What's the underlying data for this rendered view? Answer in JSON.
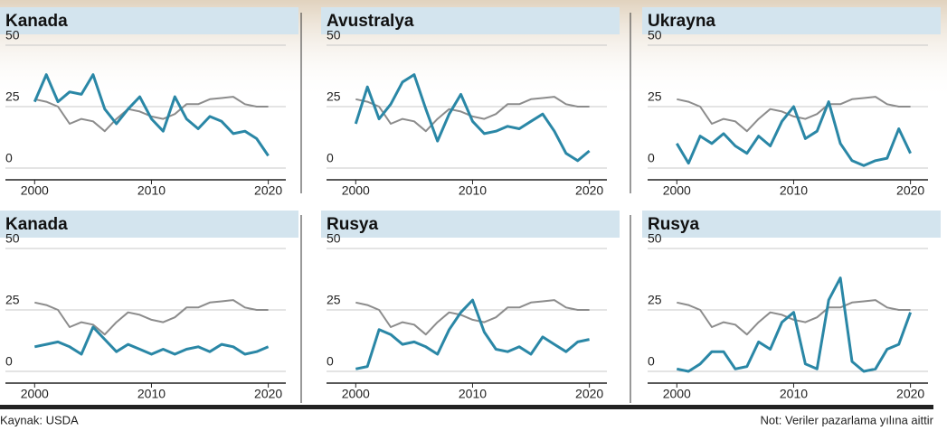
{
  "chart_data": [
    {
      "type": "line",
      "title": "Kanada",
      "x": [
        2000,
        2001,
        2002,
        2003,
        2004,
        2005,
        2006,
        2007,
        2008,
        2009,
        2010,
        2011,
        2012,
        2013,
        2014,
        2015,
        2016,
        2017,
        2018,
        2019,
        2020
      ],
      "xlim": [
        1997.5,
        2021.5
      ],
      "xticks": [
        2000,
        2010,
        2020
      ],
      "ylim": [
        0,
        50
      ],
      "yticks": [
        0,
        25,
        50
      ],
      "grid": true,
      "series": [
        {
          "color": "#8c8c8c",
          "values": [
            28,
            27,
            25,
            18,
            20,
            19,
            15,
            20,
            24,
            23,
            21,
            20,
            22,
            26,
            26,
            28,
            28.5,
            29,
            26,
            25,
            25
          ]
        },
        {
          "color": "#2a87a6",
          "values": [
            27,
            38,
            27,
            31,
            30,
            38,
            24,
            18,
            24,
            29,
            20,
            15,
            29,
            20,
            16,
            21,
            19,
            14,
            15,
            12,
            5
          ]
        }
      ]
    },
    {
      "type": "line",
      "title": "Avustralya",
      "x": [
        2000,
        2001,
        2002,
        2003,
        2004,
        2005,
        2006,
        2007,
        2008,
        2009,
        2010,
        2011,
        2012,
        2013,
        2014,
        2015,
        2016,
        2017,
        2018,
        2019,
        2020
      ],
      "xlim": [
        1997.5,
        2021.5
      ],
      "xticks": [
        2000,
        2010,
        2020
      ],
      "ylim": [
        0,
        50
      ],
      "yticks": [
        0,
        25,
        50
      ],
      "grid": true,
      "series": [
        {
          "color": "#8c8c8c",
          "values": [
            28,
            27,
            25,
            18,
            20,
            19,
            15,
            20,
            24,
            23,
            21,
            20,
            22,
            26,
            26,
            28,
            28.5,
            29,
            26,
            25,
            25
          ]
        },
        {
          "color": "#2a87a6",
          "values": [
            18,
            33,
            20,
            26,
            35,
            38,
            24,
            11,
            22,
            30,
            19,
            14,
            15,
            17,
            16,
            19,
            22,
            15,
            6,
            3,
            7
          ]
        }
      ]
    },
    {
      "type": "line",
      "title": "Ukrayna",
      "x": [
        2000,
        2001,
        2002,
        2003,
        2004,
        2005,
        2006,
        2007,
        2008,
        2009,
        2010,
        2011,
        2012,
        2013,
        2014,
        2015,
        2016,
        2017,
        2018,
        2019,
        2020
      ],
      "xlim": [
        1997.5,
        2021.5
      ],
      "xticks": [
        2000,
        2010,
        2020
      ],
      "ylim": [
        0,
        50
      ],
      "yticks": [
        0,
        25,
        50
      ],
      "grid": true,
      "series": [
        {
          "color": "#8c8c8c",
          "values": [
            28,
            27,
            25,
            18,
            20,
            19,
            15,
            20,
            24,
            23,
            21,
            20,
            22,
            26,
            26,
            28,
            28.5,
            29,
            26,
            25,
            25
          ]
        },
        {
          "color": "#2a87a6",
          "values": [
            10,
            2,
            13,
            10,
            14,
            9,
            6,
            13,
            9,
            19,
            25,
            12,
            15,
            27,
            10,
            3,
            1,
            3,
            4,
            16,
            6
          ]
        }
      ]
    },
    {
      "type": "line",
      "title": "Kanada",
      "x": [
        2000,
        2001,
        2002,
        2003,
        2004,
        2005,
        2006,
        2007,
        2008,
        2009,
        2010,
        2011,
        2012,
        2013,
        2014,
        2015,
        2016,
        2017,
        2018,
        2019,
        2020
      ],
      "xlim": [
        1997.5,
        2021.5
      ],
      "xticks": [
        2000,
        2010,
        2020
      ],
      "ylim": [
        0,
        50
      ],
      "yticks": [
        0,
        25,
        50
      ],
      "grid": true,
      "series": [
        {
          "color": "#8c8c8c",
          "values": [
            28,
            27,
            25,
            18,
            20,
            19,
            15,
            20,
            24,
            23,
            21,
            20,
            22,
            26,
            26,
            28,
            28.5,
            29,
            26,
            25,
            25
          ]
        },
        {
          "color": "#2a87a6",
          "values": [
            10,
            11,
            12,
            10,
            7,
            18,
            13,
            8,
            11,
            9,
            7,
            9,
            7,
            9,
            10,
            8,
            11,
            10,
            7,
            8,
            10
          ]
        }
      ]
    },
    {
      "type": "line",
      "title": "Rusya",
      "x": [
        2000,
        2001,
        2002,
        2003,
        2004,
        2005,
        2006,
        2007,
        2008,
        2009,
        2010,
        2011,
        2012,
        2013,
        2014,
        2015,
        2016,
        2017,
        2018,
        2019,
        2020
      ],
      "xlim": [
        1997.5,
        2021.5
      ],
      "xticks": [
        2000,
        2010,
        2020
      ],
      "ylim": [
        0,
        50
      ],
      "yticks": [
        0,
        25,
        50
      ],
      "grid": true,
      "series": [
        {
          "color": "#8c8c8c",
          "values": [
            28,
            27,
            25,
            18,
            20,
            19,
            15,
            20,
            24,
            23,
            21,
            20,
            22,
            26,
            26,
            28,
            28.5,
            29,
            26,
            25,
            25
          ]
        },
        {
          "color": "#2a87a6",
          "values": [
            1,
            2,
            17,
            15,
            11,
            12,
            10,
            7,
            17,
            24,
            29,
            16,
            9,
            8,
            10,
            7,
            14,
            11,
            8,
            12,
            13
          ]
        }
      ]
    },
    {
      "type": "line",
      "title": "Rusya",
      "x": [
        2000,
        2001,
        2002,
        2003,
        2004,
        2005,
        2006,
        2007,
        2008,
        2009,
        2010,
        2011,
        2012,
        2013,
        2014,
        2015,
        2016,
        2017,
        2018,
        2019,
        2020
      ],
      "xlim": [
        1997.5,
        2021.5
      ],
      "xticks": [
        2000,
        2010,
        2020
      ],
      "ylim": [
        0,
        50
      ],
      "yticks": [
        0,
        25,
        50
      ],
      "grid": true,
      "series": [
        {
          "color": "#8c8c8c",
          "values": [
            28,
            27,
            25,
            18,
            20,
            19,
            15,
            20,
            24,
            23,
            21,
            20,
            22,
            26,
            26,
            28,
            28.5,
            29,
            26,
            25,
            25
          ]
        },
        {
          "color": "#2a87a6",
          "values": [
            1,
            0,
            3,
            8,
            8,
            1,
            2,
            12,
            9,
            20,
            24,
            3,
            1,
            29,
            38,
            4,
            0,
            1,
            9,
            11,
            24
          ]
        }
      ]
    }
  ],
  "source": "Kaynak: USDA",
  "note": "Not: Veriler pazarlama yılına aittir"
}
